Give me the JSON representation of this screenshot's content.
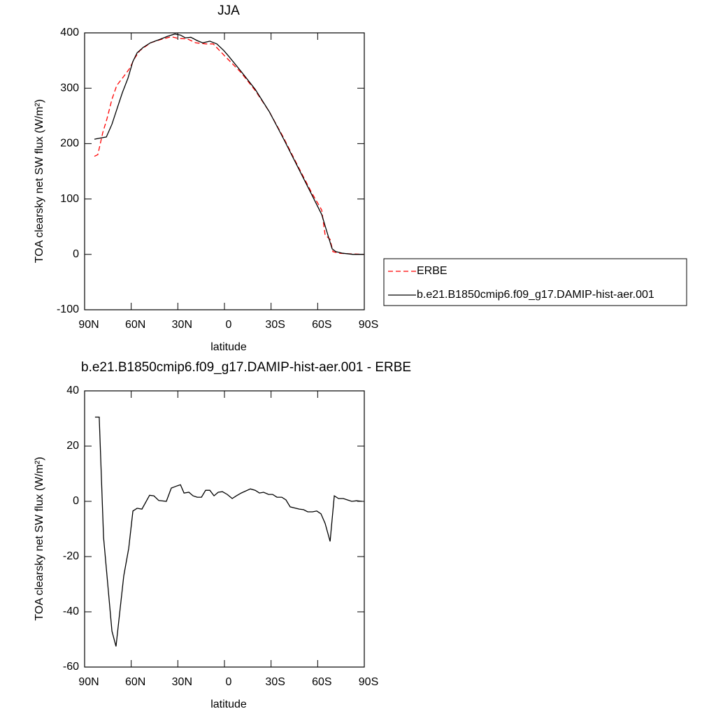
{
  "chart_data": [
    {
      "type": "line",
      "title": "JJA",
      "xlabel": "latitude",
      "ylabel": "TOA clearsky net SW flux (W/m²)",
      "xlim": [
        90,
        -90
      ],
      "xticks": [
        {
          "value": 90,
          "label": "90N"
        },
        {
          "value": 60,
          "label": "60N"
        },
        {
          "value": 30,
          "label": "30N"
        },
        0,
        {
          "value": -30,
          "label": "30S"
        },
        {
          "value": -60,
          "label": "60S"
        },
        {
          "value": -90,
          "label": "90S"
        }
      ],
      "ylim": [
        -100,
        400
      ],
      "yticks": [
        -100,
        0,
        100,
        200,
        300,
        400
      ],
      "legend": "right",
      "series": [
        {
          "name": "ERBE",
          "color": "#ff0000",
          "line_style": "dashed",
          "x": [
            83.7,
            81.5,
            78.3,
            75.6,
            72.4,
            69.3,
            65.7,
            61.2,
            57.6,
            54.4,
            47.7,
            41,
            34.2,
            29.7,
            23.8,
            18.4,
            11.7,
            7.2,
            0.4,
            -10.8,
            -19.8,
            -28.8,
            -37.8,
            -46.8,
            -55.8,
            -62.6,
            -64.8,
            -68,
            -69.8,
            -73.8,
            -80.6,
            -89.6
          ],
          "values": [
            177,
            180,
            220,
            245,
            280,
            305,
            318,
            335,
            355,
            368,
            382,
            388,
            393,
            390,
            389,
            382,
            380,
            380,
            360,
            328,
            296,
            258,
            212,
            162,
            113,
            80,
            35,
            27,
            5,
            2,
            1,
            0
          ]
        },
        {
          "name": "b.e21.B1850cmip6.f09_g17.DAMIP-hist-aer.001",
          "color": "#000000",
          "line_style": "solid",
          "x": [
            83.7,
            80.1,
            76,
            72.4,
            68.9,
            65.7,
            62.1,
            59,
            56.2,
            52.2,
            47.7,
            41.8,
            36.4,
            31.9,
            28.3,
            25.2,
            21.6,
            17.5,
            13.9,
            9.4,
            4.9,
            0.4,
            -2.7,
            -10.8,
            -19.8,
            -28.8,
            -37.8,
            -46.8,
            -55.8,
            -62.6,
            -67.1,
            -69.3,
            -71.6,
            -76.1,
            -82.8,
            -89.6
          ],
          "values": [
            208,
            210,
            212,
            235,
            265,
            292,
            318,
            348,
            364,
            374,
            382,
            388,
            394,
            398,
            396,
            391,
            392,
            386,
            382,
            385,
            380,
            368,
            358,
            330,
            298,
            258,
            210,
            160,
            110,
            72,
            30,
            10,
            5,
            2,
            0,
            0
          ]
        }
      ]
    },
    {
      "type": "line",
      "title": "b.e21.B1850cmip6.f09_g17.DAMIP-hist-aer.001 - ERBE",
      "xlabel": "latitude",
      "ylabel": "TOA clearsky net SW flux (W/m²)",
      "xlim": [
        90,
        -90
      ],
      "xticks": [
        {
          "value": 90,
          "label": "90N"
        },
        {
          "value": 60,
          "label": "60N"
        },
        {
          "value": 30,
          "label": "30N"
        },
        0,
        {
          "value": -30,
          "label": "30S"
        },
        {
          "value": -60,
          "label": "60S"
        },
        {
          "value": -90,
          "label": "90S"
        }
      ],
      "ylim": [
        -60,
        40
      ],
      "yticks": [
        -60,
        -40,
        -20,
        0,
        20,
        40
      ],
      "color": "#000000",
      "x": [
        83.3,
        80.6,
        77.8,
        72.4,
        69.8,
        64.8,
        61.6,
        58.9,
        56.2,
        53.1,
        48.2,
        45.4,
        42.3,
        37.4,
        34.2,
        31,
        28.3,
        26,
        22.9,
        20.2,
        17.5,
        14.8,
        12.1,
        9.4,
        6.7,
        4,
        1.3,
        -1.8,
        -5,
        -7.7,
        -10.8,
        -16.7,
        -19.8,
        -22.5,
        -25.2,
        -28.4,
        -31,
        -33.8,
        -36.9,
        -39.6,
        -42.3,
        -48.2,
        -50.9,
        -53.6,
        -56.7,
        -59.4,
        -62.1,
        -64.8,
        -68,
        -70.7,
        -73.4,
        -76.5,
        -79.2,
        -81.9,
        -85,
        -88.7
      ],
      "values": [
        30.5,
        30.5,
        -13,
        -47,
        -52.5,
        -27,
        -17,
        -3.5,
        -2.5,
        -2.8,
        2.2,
        2,
        0.3,
        0,
        4.8,
        5.5,
        6,
        3,
        3.3,
        2,
        1.5,
        1.5,
        4,
        4,
        2,
        3.3,
        3.5,
        2.5,
        1,
        2,
        3,
        4.5,
        4,
        3,
        3.3,
        2.5,
        2.5,
        1.5,
        1.5,
        0.5,
        -2,
        -2.8,
        -3,
        -3.8,
        -3.8,
        -3.5,
        -4.5,
        -8,
        -14.5,
        2,
        1,
        1,
        0.5,
        0,
        0.2,
        0
      ]
    }
  ]
}
